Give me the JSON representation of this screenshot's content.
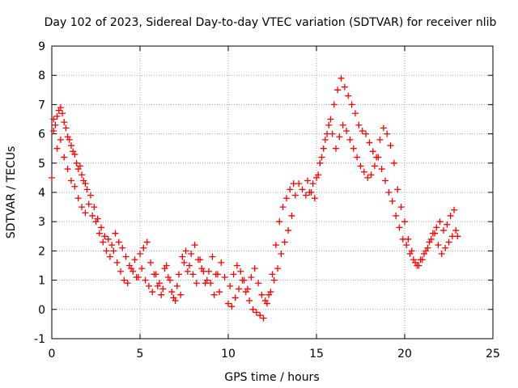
{
  "chart_data": {
    "type": "scatter",
    "title": "Day 102 of 2023, Sidereal Day-to-day VTEC variation (SDTVAR) for receiver nlib",
    "xlabel": "GPS time / hours",
    "ylabel": "SDTVAR / TECUs",
    "xlim": [
      0,
      25
    ],
    "ylim": [
      -1,
      9
    ],
    "x_ticks": [
      0,
      5,
      10,
      15,
      20,
      25
    ],
    "y_ticks": [
      -1,
      0,
      1,
      2,
      3,
      4,
      5,
      6,
      7,
      8,
      9
    ],
    "grid": true,
    "marker": "+",
    "colors": {
      "series": "#ff0000",
      "grid": "#a0a0a0",
      "axis": "#000000"
    },
    "series": [
      {
        "name": "SDTVAR",
        "x": [
          0.0,
          0.1,
          0.2,
          0.3,
          0.4,
          0.5,
          0.6,
          0.7,
          0.8,
          0.9,
          1.0,
          1.1,
          1.2,
          1.3,
          1.4,
          1.5,
          1.6,
          1.7,
          1.8,
          1.9,
          2.0,
          2.2,
          2.4,
          2.6,
          2.8,
          3.0,
          3.2,
          3.4,
          3.6,
          3.8,
          4.0,
          4.2,
          4.4,
          4.6,
          4.8,
          5.0,
          5.2,
          5.4,
          5.6,
          5.8,
          6.0,
          6.2,
          6.4,
          6.6,
          6.8,
          7.0,
          7.2,
          7.4,
          7.6,
          7.8,
          8.0,
          8.2,
          8.4,
          8.6,
          8.8,
          9.0,
          9.2,
          9.4,
          9.6,
          9.8,
          10.0,
          10.2,
          10.4,
          10.6,
          10.8,
          11.0,
          11.2,
          11.4,
          11.6,
          11.8,
          12.0,
          12.2,
          12.4,
          12.6,
          12.8,
          13.0,
          13.2,
          13.4,
          13.6,
          13.8,
          14.0,
          14.2,
          14.4,
          14.6,
          14.8,
          15.0,
          15.2,
          15.4,
          15.6,
          15.8,
          16.0,
          16.2,
          16.4,
          16.6,
          16.8,
          17.0,
          17.2,
          17.4,
          17.6,
          17.8,
          18.0,
          18.2,
          18.4,
          18.6,
          18.8,
          19.0,
          19.2,
          19.4,
          19.6,
          19.8,
          20.0,
          20.2,
          20.4,
          20.6,
          20.8,
          21.0,
          21.2,
          21.4,
          21.6,
          21.8,
          22.0,
          22.2,
          22.4,
          22.6,
          22.8,
          23.0,
          0.1,
          0.3,
          0.5,
          0.7,
          0.9,
          1.1,
          1.3,
          1.5,
          1.7,
          1.9,
          2.1,
          2.3,
          2.5,
          2.7,
          2.9,
          3.1,
          3.3,
          3.5,
          3.7,
          3.9,
          4.1,
          4.3,
          4.5,
          4.7,
          4.9,
          5.1,
          5.3,
          5.5,
          5.7,
          5.9,
          6.1,
          6.3,
          6.5,
          6.7,
          6.9,
          7.1,
          7.3,
          7.5,
          7.7,
          7.9,
          8.1,
          8.3,
          8.5,
          8.7,
          8.9,
          9.1,
          9.3,
          9.5,
          10.1,
          10.3,
          10.5,
          10.7,
          10.9,
          11.1,
          11.3,
          11.5,
          11.7,
          11.9,
          12.1,
          12.3,
          12.5,
          12.7,
          12.9,
          13.1,
          13.3,
          13.5,
          13.7,
          14.5,
          14.7,
          14.9,
          15.1,
          15.3,
          15.5,
          15.7,
          15.9,
          16.1,
          16.3,
          16.5,
          16.7,
          16.9,
          17.1,
          17.3,
          17.5,
          17.7,
          17.9,
          18.1,
          18.3,
          18.5,
          18.7,
          18.9,
          19.1,
          19.3,
          19.5,
          19.7,
          19.9,
          20.1,
          20.3,
          20.5,
          20.7,
          20.9,
          21.1,
          21.3,
          21.5,
          21.7,
          21.9,
          22.1,
          22.3,
          22.5,
          22.7,
          22.9
        ],
        "y": [
          4.5,
          6.5,
          6.3,
          6.6,
          6.8,
          6.9,
          6.7,
          6.4,
          6.2,
          5.9,
          5.8,
          5.6,
          5.4,
          5.3,
          5.0,
          4.8,
          4.9,
          4.6,
          4.4,
          4.3,
          4.1,
          3.9,
          3.5,
          3.1,
          2.8,
          2.5,
          2.4,
          2.2,
          2.6,
          2.3,
          2.1,
          1.8,
          1.5,
          1.3,
          1.1,
          1.9,
          2.1,
          2.3,
          1.6,
          1.2,
          0.8,
          0.5,
          1.4,
          1.1,
          0.6,
          0.3,
          1.2,
          1.8,
          2.0,
          1.5,
          1.2,
          0.9,
          1.7,
          1.3,
          1.0,
          0.9,
          0.5,
          1.2,
          1.6,
          1.1,
          0.2,
          0.1,
          0.4,
          0.7,
          1.0,
          0.6,
          0.3,
          0.0,
          -0.1,
          -0.2,
          -0.3,
          0.2,
          0.6,
          1.0,
          1.4,
          1.9,
          2.3,
          2.7,
          3.2,
          3.9,
          4.3,
          4.1,
          3.9,
          4.0,
          4.3,
          4.5,
          5.0,
          5.5,
          6.0,
          6.5,
          7.0,
          7.5,
          7.9,
          7.6,
          7.3,
          7.0,
          6.7,
          6.3,
          6.1,
          6.0,
          5.7,
          5.4,
          5.2,
          5.8,
          6.2,
          6.0,
          5.6,
          5.0,
          4.1,
          3.5,
          3.0,
          2.4,
          2.0,
          1.6,
          1.5,
          1.7,
          2.0,
          2.3,
          2.6,
          2.8,
          3.0,
          2.7,
          2.9,
          3.2,
          3.4,
          2.5,
          6.1,
          5.5,
          5.8,
          5.2,
          4.8,
          4.4,
          4.2,
          3.8,
          3.5,
          3.3,
          3.6,
          3.2,
          3.0,
          2.6,
          2.3,
          2.0,
          1.8,
          2.0,
          1.6,
          1.3,
          1.0,
          0.9,
          1.4,
          1.7,
          1.1,
          1.4,
          1.0,
          0.8,
          0.6,
          1.2,
          0.9,
          0.7,
          1.5,
          1.0,
          0.4,
          0.8,
          0.5,
          1.6,
          1.3,
          1.9,
          2.2,
          1.7,
          1.4,
          0.9,
          1.3,
          1.8,
          1.2,
          0.6,
          0.8,
          1.2,
          1.5,
          1.3,
          1.0,
          0.7,
          1.1,
          1.4,
          0.9,
          0.5,
          0.3,
          0.5,
          1.2,
          2.2,
          3.0,
          3.5,
          3.8,
          4.1,
          4.3,
          4.4,
          4.0,
          3.8,
          4.6,
          5.2,
          5.8,
          6.3,
          6.0,
          5.5,
          5.9,
          6.3,
          6.1,
          5.8,
          5.5,
          5.2,
          4.9,
          4.7,
          4.5,
          4.6,
          4.9,
          5.2,
          4.8,
          4.4,
          4.0,
          3.7,
          3.2,
          2.8,
          2.4,
          2.2,
          1.9,
          1.7,
          1.5,
          1.7,
          1.9,
          2.1,
          2.4,
          2.6,
          2.2,
          1.9,
          2.1,
          2.3,
          2.5,
          2.7
        ]
      }
    ]
  }
}
